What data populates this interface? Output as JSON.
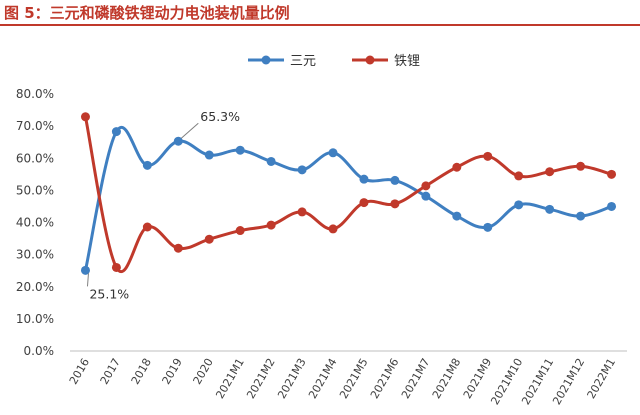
{
  "title": "图 5：三元和磷酸铁锂动力电池装机量比例",
  "colors": {
    "title": "#c0392b",
    "series_blue": "#3f7fc1",
    "series_red": "#c0392b"
  },
  "chart_data": {
    "type": "line",
    "categories": [
      "2016",
      "2017",
      "2018",
      "2019",
      "2020",
      "2021M1",
      "2021M2",
      "2021M3",
      "2021M4",
      "2021M5",
      "2021M6",
      "2021M7",
      "2021M8",
      "2021M9",
      "2021M10",
      "2021M11",
      "2021M12",
      "2022M1"
    ],
    "series": [
      {
        "name": "三元",
        "color": "#3f7fc1",
        "values": [
          25.1,
          68.3,
          57.8,
          65.3,
          61.0,
          62.5,
          59.0,
          56.4,
          61.7,
          53.5,
          53.1,
          48.2,
          42.0,
          38.5,
          45.5,
          44.1,
          42.0,
          45.0
        ]
      },
      {
        "name": "铁锂",
        "color": "#c0392b",
        "values": [
          72.9,
          26.0,
          38.6,
          32.0,
          34.8,
          37.5,
          39.2,
          43.3,
          38.0,
          46.2,
          45.8,
          51.4,
          57.2,
          60.6,
          54.5,
          55.8,
          57.5,
          55.0
        ]
      }
    ],
    "ylim": [
      0,
      80
    ],
    "yticks": [
      "0.0%",
      "10.0%",
      "20.0%",
      "30.0%",
      "40.0%",
      "50.0%",
      "60.0%",
      "70.0%",
      "80.0%"
    ],
    "annotations": [
      {
        "text": "65.3%",
        "category": "2019",
        "series": "三元"
      },
      {
        "text": "25.1%",
        "category": "2016",
        "series": "三元"
      }
    ],
    "legend_position": "top-center",
    "grid": false
  }
}
